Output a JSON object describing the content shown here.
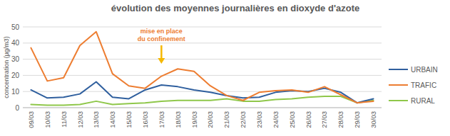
{
  "chart_data": {
    "type": "line",
    "title": "évolution des moyennes journalières en dioxyde d'azote",
    "y_label": "concentration (µg/m3)",
    "categories": [
      "09/03",
      "10/03",
      "11/03",
      "12/03",
      "13/03",
      "14/03",
      "15/03",
      "16/03",
      "17/03",
      "18/03",
      "19/03",
      "20/03",
      "21/03",
      "22/03",
      "23/03",
      "24/03",
      "25/03",
      "26/03",
      "27/03",
      "28/03",
      "29/03",
      "30/03"
    ],
    "series": [
      {
        "name": "URBAIN",
        "color": "#2f5f9e",
        "values": [
          11,
          6,
          6.5,
          8.5,
          16,
          6.5,
          5.5,
          11,
          14,
          13,
          11,
          9.5,
          7.5,
          6,
          6.5,
          9.5,
          10.5,
          10,
          12,
          9.5,
          3,
          5.5
        ]
      },
      {
        "name": "TRAFIC",
        "color": "#ed7d31",
        "values": [
          37,
          16.5,
          18.5,
          38.5,
          47,
          21,
          13.5,
          12,
          19.5,
          24,
          22.5,
          13.5,
          7.5,
          4.5,
          9.5,
          10.5,
          11,
          9.5,
          13,
          8,
          3,
          4
        ]
      },
      {
        "name": "RURAL",
        "color": "#8fc74a",
        "values": [
          2,
          1.5,
          1.5,
          2,
          4,
          2,
          2.5,
          3,
          4,
          4.5,
          4.5,
          4.5,
          5.5,
          4,
          4,
          5,
          5.5,
          6.5,
          7,
          7,
          3,
          4.5
        ]
      }
    ],
    "annotation": {
      "lines": [
        "mise en place",
        "du confinement"
      ],
      "x": "17/03"
    },
    "ylim": [
      0,
      50
    ],
    "yticks": [
      0,
      10,
      20,
      30,
      40,
      50
    ],
    "grid": true,
    "legend": "right"
  }
}
